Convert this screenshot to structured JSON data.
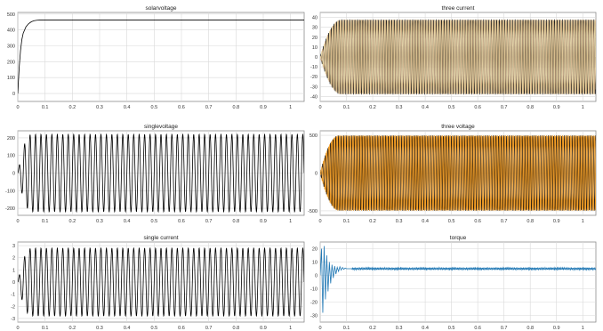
{
  "chart_data": [
    {
      "type": "line",
      "title": "solarvoltage",
      "xlim": [
        0,
        1.05
      ],
      "ylim": [
        -50,
        510
      ],
      "xticks": [
        0,
        0.1,
        0.2,
        0.3,
        0.4,
        0.5,
        0.6,
        0.7,
        0.8,
        0.9,
        1
      ],
      "xtick_labels": [
        "0",
        "0.1",
        "0.2",
        "0.3",
        "0.4",
        "0.5",
        "0.6",
        "0.7",
        "0.8",
        "0.9",
        "1"
      ],
      "yticks": [
        0,
        100,
        200,
        300,
        400,
        500
      ],
      "ytick_labels": [
        "0",
        "100",
        "200",
        "300",
        "400",
        "500"
      ],
      "grid": true,
      "series": [
        {
          "color": "#000000",
          "x": [
            0,
            0.005,
            0.01,
            0.015,
            0.02,
            0.03,
            0.04,
            0.05,
            0.06,
            0.07,
            0.08,
            0.1,
            0.2,
            0.4,
            0.6,
            0.8,
            1.0,
            1.05
          ],
          "values": [
            0,
            160,
            270,
            340,
            380,
            420,
            440,
            452,
            458,
            461,
            462,
            462,
            462,
            462,
            462,
            462,
            462,
            462
          ]
        }
      ]
    },
    {
      "type": "line",
      "title": "three current",
      "xlim": [
        0,
        1.05
      ],
      "ylim": [
        -45,
        45
      ],
      "xticks": [
        0,
        0.1,
        0.2,
        0.3,
        0.4,
        0.5,
        0.6,
        0.7,
        0.8,
        0.9,
        1
      ],
      "xtick_labels": [
        "0",
        "0.1",
        "0.2",
        "0.3",
        "0.4",
        "0.5",
        "0.6",
        "0.7",
        "0.8",
        "0.9",
        "1"
      ],
      "yticks": [
        -40,
        -30,
        -20,
        -10,
        0,
        10,
        20,
        30,
        40
      ],
      "ytick_labels": [
        "-40",
        "-30",
        "-20",
        "-10",
        "0",
        "10",
        "20",
        "30",
        "40"
      ],
      "grid": true,
      "waveform": {
        "kind": "three-phase sinusoid",
        "amplitude": 38,
        "frequency_hz": 100,
        "envelope_rise_s": 0.08
      },
      "series": [
        {
          "color": "#1a1a1a",
          "phase_deg": 0
        },
        {
          "color": "#c8a37a",
          "phase_deg": 120
        },
        {
          "color": "#e3cf9a",
          "phase_deg": 240
        }
      ]
    },
    {
      "type": "line",
      "title": "singlevoltage",
      "xlim": [
        0,
        1.05
      ],
      "ylim": [
        -240,
        240
      ],
      "xticks": [
        0,
        0.1,
        0.2,
        0.3,
        0.4,
        0.5,
        0.6,
        0.7,
        0.8,
        0.9,
        1
      ],
      "xtick_labels": [
        "0",
        "0.1",
        "0.2",
        "0.3",
        "0.4",
        "0.5",
        "0.6",
        "0.7",
        "0.8",
        "0.9",
        "1"
      ],
      "yticks": [
        -200,
        -100,
        0,
        100,
        200
      ],
      "ytick_labels": [
        "-200",
        "-100",
        "0",
        "100",
        "200"
      ],
      "grid": true,
      "waveform": {
        "kind": "sinusoid",
        "amplitude": 220,
        "frequency_hz": 50,
        "envelope_rise_s": 0.05
      },
      "series": [
        {
          "color": "#000000",
          "phase_deg": 0
        }
      ]
    },
    {
      "type": "line",
      "title": "three voltage",
      "xlim": [
        0,
        1.05
      ],
      "ylim": [
        -560,
        560
      ],
      "xticks": [
        0,
        0.1,
        0.2,
        0.3,
        0.4,
        0.5,
        0.6,
        0.7,
        0.8,
        0.9,
        1
      ],
      "xtick_labels": [
        "0",
        "0.1",
        "0.2",
        "0.3",
        "0.4",
        "0.5",
        "0.6",
        "0.7",
        "0.8",
        "0.9",
        "1"
      ],
      "yticks": [
        -500,
        0,
        500
      ],
      "ytick_labels": [
        "-500",
        "0",
        "500"
      ],
      "grid": true,
      "waveform": {
        "kind": "three-phase sinusoid",
        "amplitude": 500,
        "frequency_hz": 100,
        "envelope_rise_s": 0.07
      },
      "series": [
        {
          "color": "#e08a10",
          "phase_deg": 0
        },
        {
          "color": "#2b1e10",
          "phase_deg": 120
        },
        {
          "color": "#f0a030",
          "phase_deg": 240
        }
      ]
    },
    {
      "type": "line",
      "title": "single current",
      "xlim": [
        0,
        1.05
      ],
      "ylim": [
        -3.3,
        3.3
      ],
      "xticks": [
        0,
        0.1,
        0.2,
        0.3,
        0.4,
        0.5,
        0.6,
        0.7,
        0.8,
        0.9,
        1
      ],
      "xtick_labels": [
        "0",
        "0.1",
        "0.2",
        "0.3",
        "0.4",
        "0.5",
        "0.6",
        "0.7",
        "0.8",
        "0.9",
        "1"
      ],
      "yticks": [
        -3,
        -2,
        -1,
        0,
        1,
        2,
        3
      ],
      "ytick_labels": [
        "-3",
        "-2",
        "-1",
        "0",
        "1",
        "2",
        "3"
      ],
      "grid": true,
      "waveform": {
        "kind": "sinusoid",
        "amplitude": 2.8,
        "frequency_hz": 50,
        "envelope_rise_s": 0.05
      },
      "series": [
        {
          "color": "#000000",
          "phase_deg": 0
        }
      ]
    },
    {
      "type": "line",
      "title": "torque",
      "xlim": [
        0,
        1.05
      ],
      "ylim": [
        -35,
        25
      ],
      "xticks": [
        0,
        0.1,
        0.2,
        0.3,
        0.4,
        0.5,
        0.6,
        0.7,
        0.8,
        0.9,
        1
      ],
      "xtick_labels": [
        "0",
        "0.1",
        "0.2",
        "0.3",
        "0.4",
        "0.5",
        "0.6",
        "0.7",
        "0.8",
        "0.9",
        "1"
      ],
      "yticks": [
        -30,
        -20,
        -10,
        0,
        10,
        20
      ],
      "ytick_labels": [
        "-30",
        "-20",
        "-10",
        "0",
        "10",
        "20"
      ],
      "grid": true,
      "waveform": {
        "kind": "damped transient then steady ripple",
        "steady_value": 5,
        "ripple": 1
      },
      "series": [
        {
          "color": "#1f77b4",
          "x": [
            0,
            0.005,
            0.01,
            0.015,
            0.02,
            0.025,
            0.03,
            0.035,
            0.04,
            0.045,
            0.05,
            0.055,
            0.06,
            0.065,
            0.07,
            0.075,
            0.08,
            0.085,
            0.09,
            0.095,
            0.1,
            0.11,
            0.12
          ],
          "values": [
            0,
            20,
            -28,
            22,
            -18,
            15,
            -12,
            10,
            -6,
            8,
            -2,
            7,
            1,
            6,
            3,
            6.5,
            4,
            6,
            4.5,
            5.5,
            5,
            5,
            5
          ]
        }
      ]
    }
  ]
}
